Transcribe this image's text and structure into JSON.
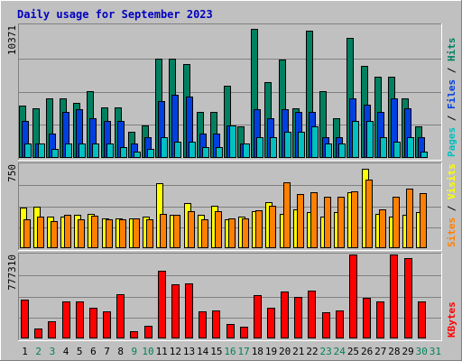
{
  "chart_data": {
    "type": "bar",
    "title": "Daily usage for September 2023",
    "categories": [
      "1",
      "2",
      "3",
      "4",
      "5",
      "6",
      "7",
      "8",
      "9",
      "10",
      "11",
      "12",
      "13",
      "14",
      "15",
      "16",
      "17",
      "18",
      "19",
      "20",
      "21",
      "22",
      "23",
      "24",
      "25",
      "26",
      "27",
      "28",
      "29",
      "30",
      "31"
    ],
    "weekend_days": [
      "2",
      "3",
      "9",
      "10",
      "16",
      "17",
      "23",
      "24",
      "30",
      "31"
    ],
    "panels": [
      {
        "name": "hits",
        "ymax_label": "10371",
        "ymax": 10371,
        "legend": [
          {
            "text": "Pages",
            "color": "#00c0c0"
          },
          {
            "text": "Files",
            "color": "#0040e0"
          },
          {
            "text": "Hits",
            "color": "#008060"
          }
        ],
        "series": [
          {
            "name": "Hits",
            "color": "#008060",
            "values": [
              4083,
              3886,
              4637,
              4637,
              4280,
              5209,
              3953,
              3953,
              2042,
              2573,
              7741,
              7741,
              7345,
              3615,
              3615,
              5649,
              2440,
              10113,
              5943,
              7674,
              3886,
              9918,
              5209,
              3102,
              9413,
              7204,
              6341,
              6341,
              4637,
              2440,
              0
            ]
          },
          {
            "name": "Files",
            "color": "#0040e0",
            "values": [
              2904,
              1120,
              1894,
              3615,
              3812,
              3086,
              2904,
              2904,
              1120,
              1620,
              4443,
              4922,
              4767,
              1894,
              1894,
              2573,
              1120,
              3815,
              3102,
              3812,
              3615,
              3615,
              1620,
              1620,
              4637,
              4147,
              3615,
              4637,
              3886,
              1620,
              0
            ]
          },
          {
            "name": "Pages",
            "color": "#00c0c0",
            "values": [
              1120,
              1120,
              700,
              1120,
              1120,
              1120,
              1120,
              867,
              500,
              700,
              1620,
              1242,
              1242,
              867,
              867,
              2573,
              1120,
              1620,
              1620,
              2042,
              2042,
              2440,
              1120,
              1120,
              2904,
              2904,
              1620,
              1242,
              1620,
              500,
              0
            ]
          }
        ]
      },
      {
        "name": "visits",
        "ymax_label": "750",
        "ymax": 750,
        "legend": [
          {
            "text": "Sites",
            "color": "#ff8000"
          },
          {
            "text": "Visits",
            "color": "#ffff00"
          }
        ],
        "series": [
          {
            "name": "Visits",
            "color": "#ffff00",
            "values": [
              360,
              370,
              280,
              280,
              300,
              310,
              270,
              270,
              270,
              280,
              580,
              300,
              400,
              300,
              380,
              260,
              280,
              330,
              410,
              310,
              350,
              320,
              280,
              320,
              500,
              710,
              310,
              280,
              300,
              320,
              0
            ]
          },
          {
            "name": "Sites",
            "color": "#ff8000",
            "values": [
              260,
              280,
              240,
              300,
              260,
              290,
              260,
              260,
              270,
              260,
              310,
              300,
              330,
              260,
              330,
              270,
              270,
              340,
              380,
              590,
              480,
              500,
              460,
              460,
              510,
              610,
              350,
              460,
              530,
              490,
              0
            ]
          }
        ]
      },
      {
        "name": "kbytes",
        "ymax_label": "777310",
        "ymax": 777310,
        "legend": [
          {
            "text": "KBytes",
            "color": "#ff0000"
          }
        ],
        "series": [
          {
            "name": "KBytes",
            "color": "#ff0000",
            "values": [
              357000,
              93000,
              162000,
              339000,
              339000,
              288000,
              248000,
              411000,
              68000,
              119000,
              626000,
              502000,
              512000,
              248000,
              260000,
              135000,
              111000,
              403000,
              281000,
              438000,
              386000,
              446000,
              239000,
              260000,
              776000,
              380000,
              339000,
              776000,
              740000,
              339000,
              0
            ]
          }
        ]
      }
    ]
  }
}
